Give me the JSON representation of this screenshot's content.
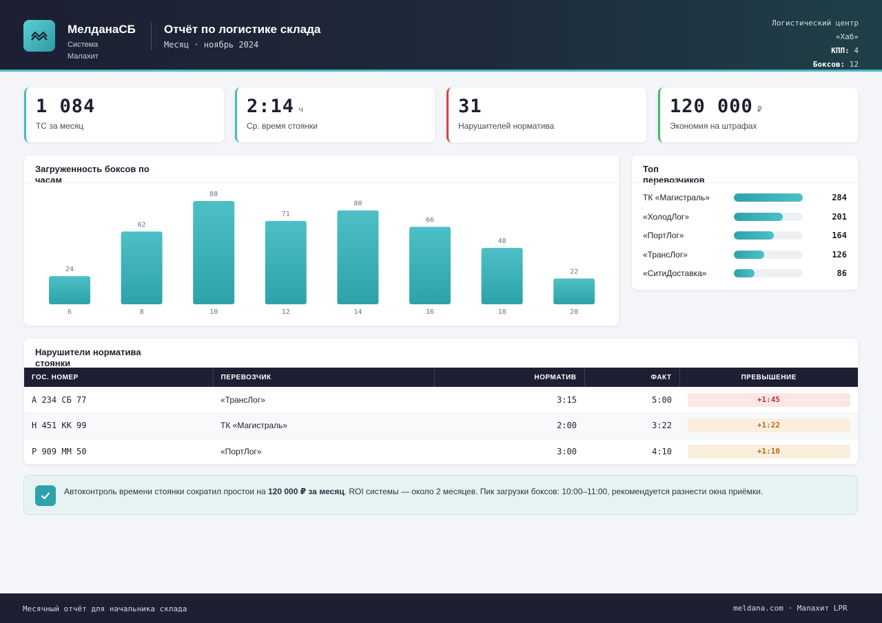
{
  "header": {
    "brand_name": "МелданаСБ",
    "brand_sub": "Система Малахит",
    "report_title": "Отчёт по логистике склада",
    "report_period": "Месяц · ноябрь 2024",
    "hub_line1": "Логистический центр",
    "hub_line2": "«Хаб»",
    "kpp_label": "КПП:",
    "kpp_value": "4",
    "boxes_label": "Боксов:",
    "boxes_value": "12",
    "logo_icon": "wave-logo-icon",
    "accent": "#45b9c0"
  },
  "kpis": [
    {
      "value": "1 084",
      "unit": "",
      "label": "ТС за месяц",
      "color": "#45b9c0"
    },
    {
      "value": "2:14",
      "unit": "ч",
      "label": "Ср. время стоянки",
      "color": "#45b9c0"
    },
    {
      "value": "31",
      "unit": "",
      "label": "Нарушителей норматива",
      "color": "#d9423a"
    },
    {
      "value": "120 000",
      "unit": "₽",
      "label": "Экономия на штрафах",
      "color": "#3cb96b"
    }
  ],
  "chart_data": {
    "type": "bar",
    "title": "Загруженность боксов по часам",
    "categories": [
      "6",
      "8",
      "10",
      "12",
      "14",
      "16",
      "18",
      "20"
    ],
    "values": [
      24,
      62,
      88,
      71,
      80,
      66,
      48,
      22
    ],
    "ylim": [
      0,
      88
    ],
    "grid": false,
    "bar_color": "#3bb0b8"
  },
  "carriers": {
    "title": "Топ перевозчиков",
    "max": 284,
    "items": [
      {
        "name": "ТК «Магистраль»",
        "value": 284
      },
      {
        "name": "«ХолодЛог»",
        "value": 201
      },
      {
        "name": "«ПортЛог»",
        "value": 164
      },
      {
        "name": "«ТрансЛог»",
        "value": 126
      },
      {
        "name": "«СитиДоставка»",
        "value": 86
      }
    ]
  },
  "violators": {
    "title": "Нарушители норматива стоянки",
    "columns": [
      "ГОС. НОМЕР",
      "ПЕРЕВОЗЧИК",
      "НОРМАТИВ",
      "ФАКТ",
      "ПРЕВЫШЕНИЕ"
    ],
    "rows": [
      {
        "plate": "А 234 СБ 77",
        "carrier": "«ТрансЛог»",
        "norm": "3:15",
        "fact": "5:00",
        "excess": "+1:45",
        "severity": "high"
      },
      {
        "plate": "Н 451 КК 99",
        "carrier": "ТК «Магистраль»",
        "norm": "2:00",
        "fact": "3:22",
        "excess": "+1:22",
        "severity": "medium"
      },
      {
        "plate": "Р 909 ММ 50",
        "carrier": "«ПортЛог»",
        "norm": "3:00",
        "fact": "4:10",
        "excess": "+1:10",
        "severity": "medium"
      }
    ]
  },
  "note": {
    "icon": "checkmark-icon",
    "text_before": "Автоконтроль времени стоянки сократил простои на ",
    "text_bold": "120 000 ₽ за месяц",
    "text_after": ". ROI системы — около 2 месяцев. Пик загрузки боксов: 10:00–11:00, рекомендуется разнести окна приёмки."
  },
  "footer": {
    "left": "Месячный отчёт для начальника склада",
    "right": "meldana.com · Малахит LPR"
  }
}
